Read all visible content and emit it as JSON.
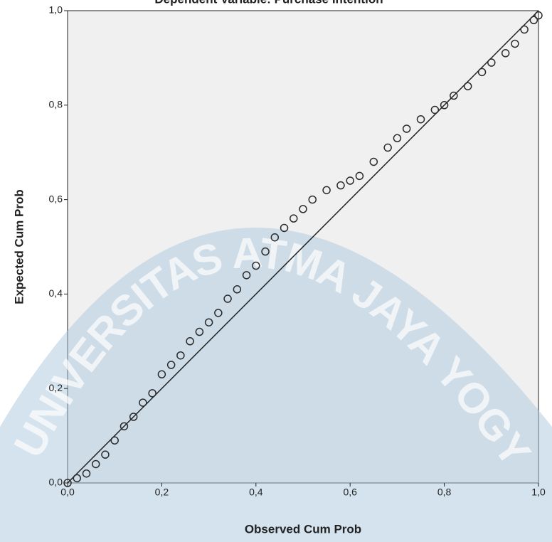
{
  "chart_data": {
    "type": "scatter",
    "title": "Dependent Variable: Purchase Intention",
    "x_label": "Observed Cum Prob",
    "y_label": "Expected Cum Prob",
    "watermark": "UNIVERSITAS ATMA JAYA YOGYAKARTA",
    "color": "#2b2b2b",
    "x": [
      0,
      0.02,
      0.04,
      0.06,
      0.08,
      0.1,
      0.12,
      0.14,
      0.16,
      0.18,
      0.2,
      0.22,
      0.24,
      0.26,
      0.28,
      0.3,
      0.32,
      0.34,
      0.36,
      0.38,
      0.4,
      0.42,
      0.44,
      0.46,
      0.48,
      0.5,
      0.52,
      0.55,
      0.58,
      0.6,
      0.62,
      0.65,
      0.68,
      0.7,
      0.72,
      0.75,
      0.78,
      0.8,
      0.82,
      0.85,
      0.88,
      0.9,
      0.93,
      0.95,
      0.97,
      0.99,
      1.0
    ],
    "y": [
      0,
      0.01,
      0.02,
      0.04,
      0.06,
      0.09,
      0.12,
      0.14,
      0.17,
      0.19,
      0.23,
      0.25,
      0.27,
      0.3,
      0.32,
      0.34,
      0.36,
      0.39,
      0.41,
      0.44,
      0.46,
      0.49,
      0.52,
      0.54,
      0.56,
      0.58,
      0.6,
      0.62,
      0.63,
      0.64,
      0.65,
      0.68,
      0.71,
      0.73,
      0.75,
      0.77,
      0.79,
      0.8,
      0.82,
      0.84,
      0.87,
      0.89,
      0.91,
      0.93,
      0.96,
      0.98,
      0.99
    ],
    "xlim": [
      0,
      1
    ],
    "ylim": [
      0,
      1
    ],
    "xticks": [
      {
        "value": 0,
        "label": "0,0"
      },
      {
        "value": 0.2,
        "label": "0,2"
      },
      {
        "value": 0.4,
        "label": "0,4"
      },
      {
        "value": 0.6,
        "label": "0,6"
      },
      {
        "value": 0.8,
        "label": "0,8"
      },
      {
        "value": 1,
        "label": "1,0"
      }
    ],
    "yticks": [
      {
        "value": 0,
        "label": "0,0"
      },
      {
        "value": 0.2,
        "label": "0,2"
      },
      {
        "value": 0.4,
        "label": "0,4"
      },
      {
        "value": 0.6,
        "label": "0,6"
      },
      {
        "value": 0.8,
        "label": "0,8"
      },
      {
        "value": 1,
        "label": "1,0"
      }
    ],
    "reference_line": true
  }
}
